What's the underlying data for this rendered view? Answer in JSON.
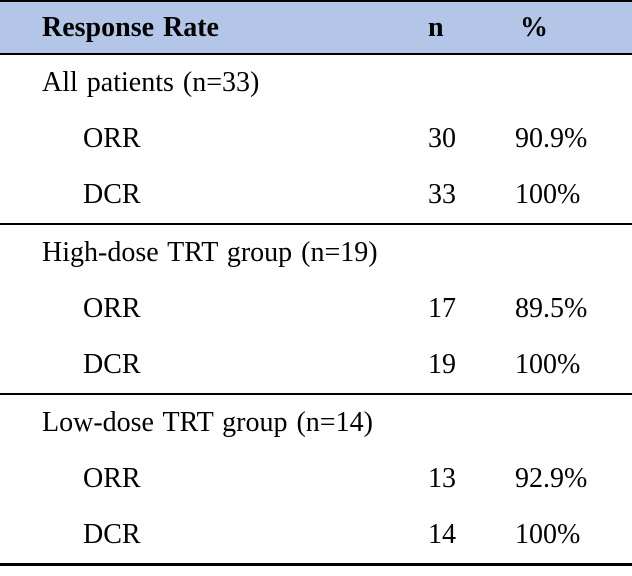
{
  "colors": {
    "header_background": "#b4c6e7",
    "rule_lines": "#000000",
    "text": "#000000"
  },
  "table": {
    "header": {
      "label": "Response Rate",
      "n": "n",
      "pct": "%"
    },
    "sections": [
      {
        "group": "All patients (n=33)",
        "rows": [
          {
            "label": "ORR",
            "n": "30",
            "pct": "90.9%"
          },
          {
            "label": "DCR",
            "n": "33",
            "pct": "100%"
          }
        ]
      },
      {
        "group": "High-dose TRT group (n=19)",
        "rows": [
          {
            "label": "ORR",
            "n": "17",
            "pct": "89.5%"
          },
          {
            "label": "DCR",
            "n": "19",
            "pct": "100%"
          }
        ]
      },
      {
        "group": "Low-dose TRT group (n=14)",
        "rows": [
          {
            "label": "ORR",
            "n": "13",
            "pct": "92.9%"
          },
          {
            "label": "DCR",
            "n": "14",
            "pct": "100%"
          }
        ]
      }
    ]
  },
  "chart_data": {
    "type": "table",
    "title": "Response Rate",
    "columns": [
      "Response Rate",
      "n",
      "%"
    ],
    "groups": [
      {
        "name": "All patients",
        "n_total": 33,
        "rows": [
          [
            "ORR",
            30,
            "90.9%"
          ],
          [
            "DCR",
            33,
            "100%"
          ]
        ]
      },
      {
        "name": "High-dose TRT group",
        "n_total": 19,
        "rows": [
          [
            "ORR",
            17,
            "89.5%"
          ],
          [
            "DCR",
            19,
            "100%"
          ]
        ]
      },
      {
        "name": "Low-dose TRT group",
        "n_total": 14,
        "rows": [
          [
            "ORR",
            13,
            "92.9%"
          ],
          [
            "DCR",
            14,
            "100%"
          ]
        ]
      }
    ]
  }
}
